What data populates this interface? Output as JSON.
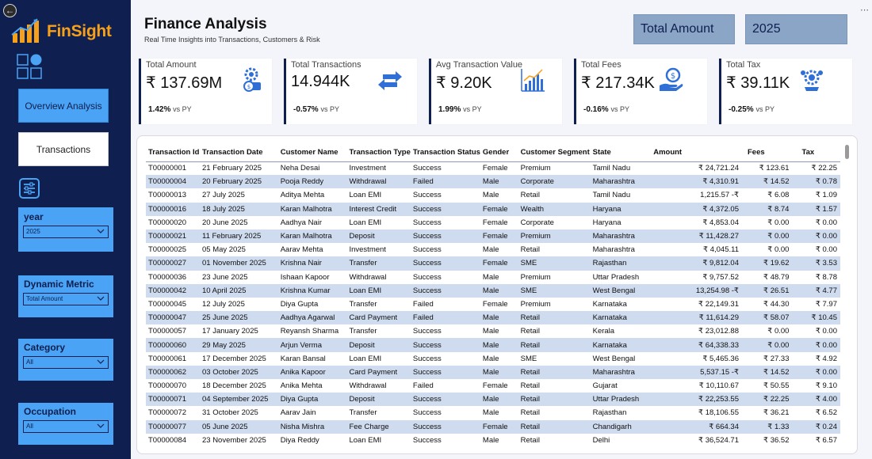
{
  "sidebar": {
    "logo_text": "FinSight",
    "nav": {
      "overview": "Overview Analysis",
      "transactions": "Transactions"
    },
    "slicers": [
      {
        "title": "year",
        "value": "2025"
      },
      {
        "title": "Dynamic Metric",
        "value": "Total Amount"
      },
      {
        "title": "Category",
        "value": "All"
      },
      {
        "title": "Occupation",
        "value": "All"
      }
    ]
  },
  "header": {
    "title": "Finance Analysis",
    "subtitle": "Real Time Insights into Transactions, Customers & Risk",
    "metric_box": "Total Amount",
    "year_box": "2025"
  },
  "kpis": [
    {
      "label": "Total Amount",
      "value": "₹ 137.69M",
      "delta": "1.42%",
      "vs": "vs PY",
      "icon": "settings-coin-icon"
    },
    {
      "label": "Total Transactions",
      "value": "14.944K",
      "delta": "-0.57%",
      "vs": "vs PY",
      "icon": "exchange-arrows-icon"
    },
    {
      "label": "Avg Transaction Value",
      "value": "₹ 9.20K",
      "delta": "1.99%",
      "vs": "vs PY",
      "icon": "bar-chart-icon"
    },
    {
      "label": "Total Fees",
      "value": "₹ 217.34K",
      "delta": "-0.16%",
      "vs": "vs PY",
      "icon": "hand-coin-icon"
    },
    {
      "label": "Total Tax",
      "value": "₹ 39.11K",
      "delta": "-0.25%",
      "vs": "vs PY",
      "icon": "tax-gear-icon"
    }
  ],
  "table": {
    "columns": [
      "Transaction Id",
      "Transaction Date",
      "Customer Name",
      "Transaction Type",
      "Transaction Status",
      "Gender",
      "Customer Segment",
      "State",
      "Amount",
      "Fees",
      "Tax"
    ],
    "rows": [
      [
        "T00000001",
        "21 February 2025",
        "Neha Desai",
        "Investment",
        "Success",
        "Female",
        "Premium",
        "Tamil Nadu",
        "₹ 24,721.24",
        "₹ 123.61",
        "₹ 22.25"
      ],
      [
        "T00000004",
        "20 February 2025",
        "Pooja Reddy",
        "Withdrawal",
        "Failed",
        "Male",
        "Corporate",
        "Maharashtra",
        "₹ 4,310.91",
        "₹ 14.52",
        "₹ 0.78"
      ],
      [
        "T00000013",
        "27 July 2025",
        "Aditya Mehta",
        "Loan EMI",
        "Success",
        "Male",
        "Retail",
        "Tamil Nadu",
        "1,215.57 -₹",
        "₹ 6.08",
        "₹ 1.09"
      ],
      [
        "T00000016",
        "18 July 2025",
        "Karan Malhotra",
        "Interest Credit",
        "Success",
        "Female",
        "Wealth",
        "Haryana",
        "₹ 4,372.05",
        "₹ 8.74",
        "₹ 1.57"
      ],
      [
        "T00000020",
        "20 June 2025",
        "Aadhya Nair",
        "Loan EMI",
        "Success",
        "Female",
        "Corporate",
        "Haryana",
        "₹ 4,853.04",
        "₹ 0.00",
        "₹ 0.00"
      ],
      [
        "T00000021",
        "11 February 2025",
        "Karan Malhotra",
        "Deposit",
        "Success",
        "Female",
        "Premium",
        "Maharashtra",
        "₹ 11,428.27",
        "₹ 0.00",
        "₹ 0.00"
      ],
      [
        "T00000025",
        "05 May 2025",
        "Aarav Mehta",
        "Investment",
        "Success",
        "Male",
        "Retail",
        "Maharashtra",
        "₹ 4,045.11",
        "₹ 0.00",
        "₹ 0.00"
      ],
      [
        "T00000027",
        "01 November 2025",
        "Krishna Nair",
        "Transfer",
        "Success",
        "Female",
        "SME",
        "Rajasthan",
        "₹ 9,812.04",
        "₹ 19.62",
        "₹ 3.53"
      ],
      [
        "T00000036",
        "23 June 2025",
        "Ishaan Kapoor",
        "Withdrawal",
        "Success",
        "Male",
        "Premium",
        "Uttar Pradesh",
        "₹ 9,757.52",
        "₹ 48.79",
        "₹ 8.78"
      ],
      [
        "T00000042",
        "10 April 2025",
        "Krishna Kumar",
        "Loan EMI",
        "Success",
        "Male",
        "SME",
        "West Bengal",
        "13,254.98 -₹",
        "₹ 26.51",
        "₹ 4.77"
      ],
      [
        "T00000045",
        "12 July 2025",
        "Diya Gupta",
        "Transfer",
        "Failed",
        "Female",
        "Premium",
        "Karnataka",
        "₹ 22,149.31",
        "₹ 44.30",
        "₹ 7.97"
      ],
      [
        "T00000047",
        "25 June 2025",
        "Aadhya Agarwal",
        "Card Payment",
        "Failed",
        "Male",
        "Retail",
        "Karnataka",
        "₹ 11,614.29",
        "₹ 58.07",
        "₹ 10.45"
      ],
      [
        "T00000057",
        "17 January 2025",
        "Reyansh Sharma",
        "Transfer",
        "Success",
        "Male",
        "Retail",
        "Kerala",
        "₹ 23,012.88",
        "₹ 0.00",
        "₹ 0.00"
      ],
      [
        "T00000060",
        "29 May 2025",
        "Arjun Verma",
        "Deposit",
        "Success",
        "Male",
        "Retail",
        "Karnataka",
        "₹ 64,338.33",
        "₹ 0.00",
        "₹ 0.00"
      ],
      [
        "T00000061",
        "17 December 2025",
        "Karan Bansal",
        "Loan EMI",
        "Success",
        "Male",
        "SME",
        "West Bengal",
        "₹ 5,465.36",
        "₹ 27.33",
        "₹ 4.92"
      ],
      [
        "T00000062",
        "03 October 2025",
        "Anika Kapoor",
        "Card Payment",
        "Success",
        "Male",
        "Retail",
        "Maharashtra",
        "5,537.15 -₹",
        "₹ 14.52",
        "₹ 0.00"
      ],
      [
        "T00000070",
        "18 December 2025",
        "Anika Mehta",
        "Withdrawal",
        "Failed",
        "Female",
        "Retail",
        "Gujarat",
        "₹ 10,110.67",
        "₹ 50.55",
        "₹ 9.10"
      ],
      [
        "T00000071",
        "04 September 2025",
        "Diya Gupta",
        "Deposit",
        "Success",
        "Male",
        "Retail",
        "Uttar Pradesh",
        "₹ 22,253.55",
        "₹ 22.25",
        "₹ 4.00"
      ],
      [
        "T00000072",
        "31 October 2025",
        "Aarav Jain",
        "Transfer",
        "Success",
        "Male",
        "Retail",
        "Rajasthan",
        "₹ 18,106.55",
        "₹ 36.21",
        "₹ 6.52"
      ],
      [
        "T00000077",
        "05 June 2025",
        "Nisha Mishra",
        "Fee Charge",
        "Success",
        "Female",
        "Retail",
        "Chandigarh",
        "₹ 664.34",
        "₹ 1.33",
        "₹ 0.24"
      ],
      [
        "T00000084",
        "23 November 2025",
        "Diya Reddy",
        "Loan EMI",
        "Success",
        "Male",
        "Retail",
        "Delhi",
        "₹ 36,524.71",
        "₹ 36.52",
        "₹ 6.57"
      ]
    ]
  },
  "colors": {
    "sidebar_bg": "#0f1f4f",
    "accent": "#4aa3f5",
    "header_box": "#8aa5c6",
    "row_stripe": "#cfdcef",
    "logo": "#f7a11b"
  }
}
